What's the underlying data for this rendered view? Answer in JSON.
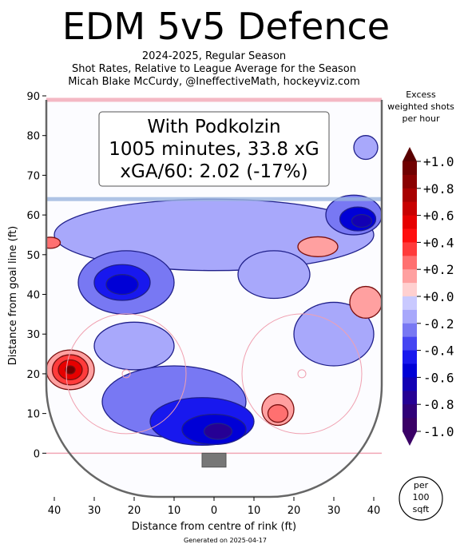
{
  "chart_data": {
    "type": "heatmap",
    "title": "EDM 5v5 Defence",
    "subtitle_lines": [
      "2024-2025, Regular Season",
      "Shot Rates, Relative to League Average for the Season",
      "Micah Blake McCurdy, @IneffectiveMath, hockeyviz.com"
    ],
    "xlabel": "Distance from centre of rink (ft)",
    "ylabel": "Distance from goal line (ft)",
    "x_ticks": [
      40,
      30,
      20,
      10,
      0,
      10,
      20,
      30,
      40
    ],
    "y_ticks": [
      0,
      10,
      20,
      30,
      40,
      50,
      60,
      70,
      80,
      90
    ],
    "xlim": [
      -42,
      42
    ],
    "ylim": [
      -11,
      90
    ],
    "info_box": {
      "line1": "With Podkolzin",
      "line2": "1005 minutes, 33.8 xG",
      "line3": "xGA/60: 2.02 (-17%)"
    },
    "colorbar": {
      "title_lines": [
        "Excess",
        "weighted shots",
        "per hour"
      ],
      "ticks": [
        "+1.0",
        "+0.8",
        "+0.6",
        "+0.4",
        "+0.2",
        "+0.0",
        "-0.2",
        "-0.4",
        "-0.6",
        "-0.8",
        "-1.0"
      ],
      "range": [
        -1.0,
        1.0
      ],
      "colors_positive": [
        "#ffd0d0",
        "#ffa0a0",
        "#ff7070",
        "#ff3b3b",
        "#ff0f0f",
        "#e60000",
        "#c80000",
        "#a80000",
        "#8a0000",
        "#700000"
      ],
      "colors_negative": [
        "#c9c9ff",
        "#a8a8fb",
        "#7878f3",
        "#4545f2",
        "#1818ee",
        "#0000d6",
        "#1200b4",
        "#260094",
        "#300078",
        "#3a0066"
      ]
    },
    "regions": [
      {
        "cx": 0,
        "cy": 55,
        "rx": 40,
        "ry": 9,
        "value": -0.15
      },
      {
        "cx": -22,
        "cy": 43,
        "rx": 12,
        "ry": 8,
        "value": -0.25
      },
      {
        "cx": -23,
        "cy": 43,
        "rx": 7,
        "ry": 4.5,
        "value": -0.45
      },
      {
        "cx": -23,
        "cy": 42.5,
        "rx": 4,
        "ry": 2.5,
        "value": -0.6
      },
      {
        "cx": 35,
        "cy": 60,
        "rx": 7,
        "ry": 5,
        "value": -0.3
      },
      {
        "cx": 36,
        "cy": 59,
        "rx": 4.5,
        "ry": 3,
        "value": -0.5
      },
      {
        "cx": 37,
        "cy": 58.5,
        "rx": 2.5,
        "ry": 1.6,
        "value": -0.65
      },
      {
        "cx": 38,
        "cy": 77,
        "rx": 3,
        "ry": 3,
        "value": -0.15
      },
      {
        "cx": -10,
        "cy": 13,
        "rx": 18,
        "ry": 9,
        "value": -0.2
      },
      {
        "cx": -3,
        "cy": 8,
        "rx": 13,
        "ry": 6,
        "value": -0.4
      },
      {
        "cx": 0,
        "cy": 6,
        "rx": 8,
        "ry": 3.8,
        "value": -0.6
      },
      {
        "cx": 1,
        "cy": 5.5,
        "rx": 3.5,
        "ry": 2,
        "value": -0.75
      },
      {
        "cx": -20,
        "cy": 27,
        "rx": 10,
        "ry": 6,
        "value": -0.12
      },
      {
        "cx": 30,
        "cy": 30,
        "rx": 10,
        "ry": 8,
        "value": -0.1
      },
      {
        "cx": 15,
        "cy": 45,
        "rx": 9,
        "ry": 6,
        "value": -0.15
      },
      {
        "cx": -36,
        "cy": 21,
        "rx": 6,
        "ry": 5,
        "value": 0.15
      },
      {
        "cx": -36,
        "cy": 21,
        "rx": 4.5,
        "ry": 3.8,
        "value": 0.35
      },
      {
        "cx": -36,
        "cy": 21,
        "rx": 3,
        "ry": 2.5,
        "value": 0.55
      },
      {
        "cx": -36,
        "cy": 21,
        "rx": 1.2,
        "ry": 1,
        "value": 0.9
      },
      {
        "cx": 16,
        "cy": 11,
        "rx": 4,
        "ry": 4,
        "value": 0.15
      },
      {
        "cx": 16,
        "cy": 10,
        "rx": 2.5,
        "ry": 2.2,
        "value": 0.3
      },
      {
        "cx": 26,
        "cy": 52,
        "rx": 5,
        "ry": 2.5,
        "value": 0.15
      },
      {
        "cx": 38,
        "cy": 38,
        "rx": 4,
        "ry": 4,
        "value": 0.15
      },
      {
        "cx": -41,
        "cy": 53,
        "rx": 2.5,
        "ry": 1.4,
        "value": 0.25
      }
    ]
  },
  "footer": "Generated on 2025-04-17",
  "per_badge": [
    "per",
    "100",
    "sqft"
  ]
}
